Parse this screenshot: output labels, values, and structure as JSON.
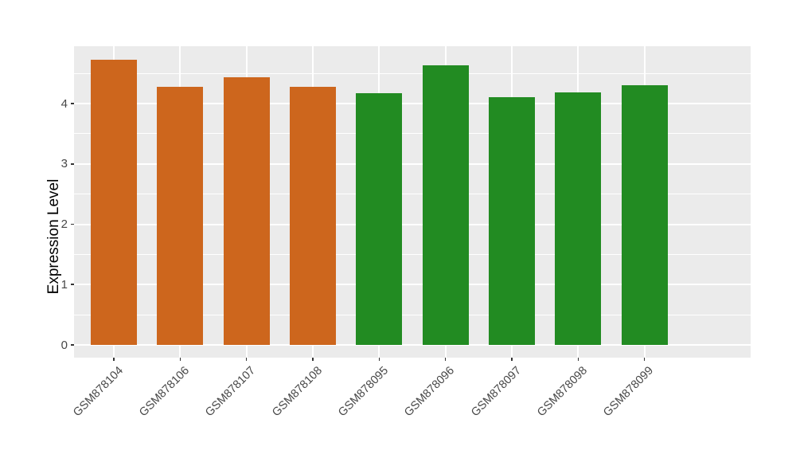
{
  "chart_data": {
    "type": "bar",
    "title": "",
    "xlabel": "",
    "ylabel": "Expression Level",
    "categories": [
      "GSM878104",
      "GSM878106",
      "GSM878107",
      "GSM878108",
      "GSM878095",
      "GSM878096",
      "GSM878097",
      "GSM878098",
      "GSM878099"
    ],
    "values": [
      4.73,
      4.28,
      4.44,
      4.28,
      4.17,
      4.63,
      4.1,
      4.18,
      4.31
    ],
    "bar_colors": [
      "#CD661D",
      "#CD661D",
      "#CD661D",
      "#CD661D",
      "#228B22",
      "#228B22",
      "#228B22",
      "#228B22",
      "#228B22"
    ],
    "groups": [
      {
        "name": "orange-group",
        "color": "#CD661D",
        "categories": [
          "GSM878104",
          "GSM878106",
          "GSM878107",
          "GSM878108"
        ]
      },
      {
        "name": "green-group",
        "color": "#228B22",
        "categories": [
          "GSM878095",
          "GSM878096",
          "GSM878097",
          "GSM878098",
          "GSM878099"
        ]
      }
    ],
    "yticks": [
      0,
      1,
      2,
      3,
      4
    ],
    "yticks_minor": [
      0.5,
      1.5,
      2.5,
      3.5,
      4.5
    ],
    "ylim": [
      0,
      4.95
    ],
    "grid": "on",
    "legend_position": "none",
    "panel_background": "#EBEBEB",
    "grid_color": "#FFFFFF",
    "axis_text_color": "#474747",
    "tick_mark_color": "#333333"
  }
}
